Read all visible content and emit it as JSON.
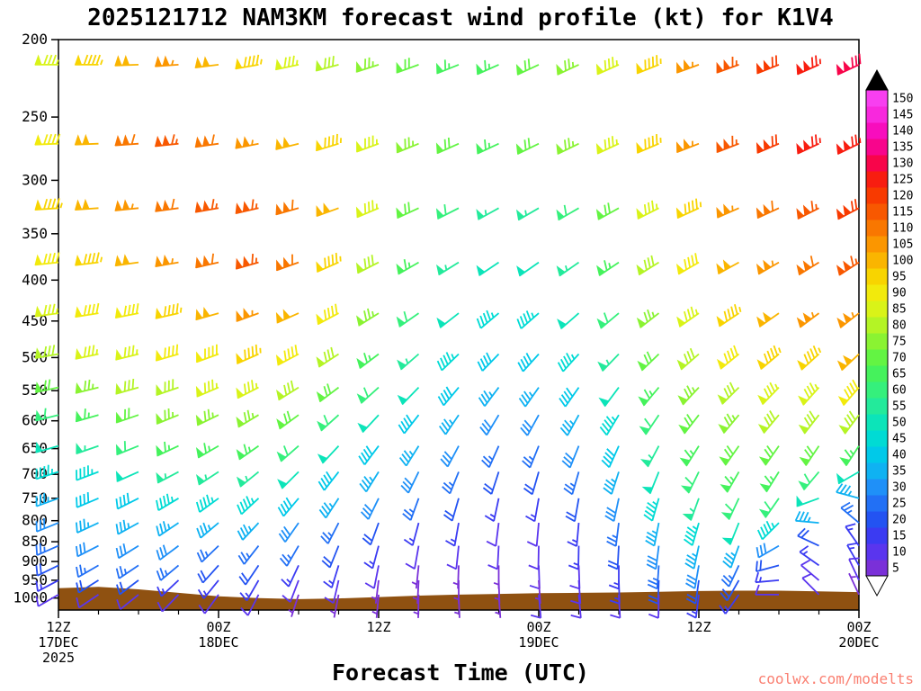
{
  "title": "2025121712 NAM3KM forecast wind profile (kt) for K1V4",
  "xlabel": "Forecast Time (UTC)",
  "watermark": "coolwx.com/modelts",
  "colors": {
    "terrain": "#8f5111",
    "watermark": "#fa8072",
    "axis": "#000000",
    "background": "#ffffff"
  },
  "y_axis": {
    "ticks": [
      200,
      250,
      300,
      350,
      400,
      450,
      500,
      550,
      600,
      650,
      700,
      750,
      800,
      850,
      900,
      950,
      1000
    ],
    "scale": "log",
    "top_hpa": 200,
    "bottom_hpa": 1035
  },
  "x_axis": {
    "total_hours": 60,
    "minor_step_hours": 3,
    "major_ticks": [
      {
        "hour": 0,
        "time": "12Z",
        "date": "17DEC",
        "year": "2025"
      },
      {
        "hour": 12,
        "time": "00Z",
        "date": "18DEC",
        "year": ""
      },
      {
        "hour": 24,
        "time": "12Z",
        "date": "",
        "year": ""
      },
      {
        "hour": 36,
        "time": "00Z",
        "date": "19DEC",
        "year": ""
      },
      {
        "hour": 48,
        "time": "12Z",
        "date": "",
        "year": ""
      },
      {
        "hour": 60,
        "time": "00Z",
        "date": "20DEC",
        "year": ""
      }
    ]
  },
  "colorbar": {
    "unit": "kt",
    "values": [
      5,
      10,
      15,
      20,
      25,
      30,
      35,
      40,
      45,
      50,
      55,
      60,
      65,
      70,
      75,
      80,
      85,
      90,
      95,
      100,
      105,
      110,
      115,
      120,
      125,
      130,
      135,
      140,
      145,
      150
    ],
    "colors": [
      "#7a30d8",
      "#5a35ee",
      "#3b3bf2",
      "#2353f2",
      "#2270f5",
      "#1f90f8",
      "#0fb2f2",
      "#00c9e9",
      "#00dbd4",
      "#0ce4b9",
      "#23ea9b",
      "#35f07c",
      "#45f25c",
      "#63f443",
      "#8af332",
      "#b4f425",
      "#d9f318",
      "#f2ea0c",
      "#f8d400",
      "#fab500",
      "#fb9600",
      "#f97700",
      "#f85800",
      "#f83a00",
      "#f81d10",
      "#f8054a",
      "#f8058c",
      "#f80dbd",
      "#f828dd",
      "#f83ff0"
    ]
  },
  "chart_data": {
    "type": "wind-barb-time-height",
    "model": "NAM3KM",
    "run": "2025121712",
    "station": "K1V4",
    "units": "kt",
    "hours": [
      0,
      3,
      6,
      9,
      12,
      15,
      18,
      21,
      24,
      27,
      30,
      33,
      36,
      39,
      42,
      45,
      48,
      51,
      54,
      57,
      60
    ],
    "levels_hpa": [
      215,
      270,
      325,
      380,
      440,
      495,
      545,
      590,
      645,
      695,
      750,
      805,
      860,
      910,
      950,
      990
    ],
    "speed_kt": [
      [
        85,
        95,
        100,
        105,
        100,
        95,
        85,
        80,
        75,
        70,
        65,
        65,
        70,
        75,
        85,
        95,
        105,
        115,
        120,
        125,
        130
      ],
      [
        90,
        100,
        110,
        115,
        110,
        105,
        100,
        95,
        85,
        75,
        70,
        65,
        70,
        75,
        85,
        95,
        105,
        115,
        120,
        125,
        125
      ],
      [
        95,
        100,
        105,
        110,
        115,
        115,
        110,
        100,
        85,
        70,
        60,
        55,
        55,
        60,
        70,
        85,
        95,
        105,
        110,
        115,
        120
      ],
      [
        90,
        95,
        100,
        105,
        110,
        115,
        110,
        95,
        80,
        65,
        55,
        50,
        50,
        55,
        65,
        80,
        90,
        100,
        105,
        110,
        115
      ],
      [
        85,
        90,
        90,
        95,
        100,
        105,
        100,
        90,
        75,
        60,
        50,
        45,
        45,
        50,
        60,
        75,
        85,
        95,
        100,
        105,
        105
      ],
      [
        80,
        85,
        85,
        90,
        90,
        95,
        90,
        80,
        65,
        55,
        45,
        40,
        40,
        45,
        55,
        70,
        80,
        90,
        95,
        95,
        100
      ],
      [
        70,
        75,
        80,
        80,
        85,
        85,
        80,
        70,
        60,
        50,
        40,
        35,
        35,
        40,
        50,
        65,
        75,
        80,
        85,
        85,
        90
      ],
      [
        60,
        65,
        70,
        75,
        75,
        75,
        70,
        60,
        50,
        40,
        35,
        30,
        30,
        35,
        45,
        60,
        70,
        75,
        80,
        80,
        80
      ],
      [
        50,
        55,
        60,
        65,
        65,
        65,
        60,
        50,
        40,
        35,
        30,
        25,
        25,
        30,
        40,
        55,
        65,
        70,
        70,
        70,
        65
      ],
      [
        45,
        45,
        50,
        55,
        55,
        55,
        50,
        40,
        35,
        30,
        25,
        20,
        20,
        25,
        35,
        50,
        60,
        65,
        65,
        60,
        50
      ],
      [
        35,
        40,
        40,
        45,
        45,
        45,
        40,
        35,
        30,
        25,
        20,
        15,
        15,
        20,
        30,
        45,
        55,
        60,
        60,
        50,
        35
      ],
      [
        30,
        35,
        35,
        35,
        35,
        35,
        30,
        25,
        20,
        15,
        15,
        10,
        10,
        15,
        25,
        35,
        45,
        50,
        45,
        35,
        25
      ],
      [
        25,
        30,
        30,
        30,
        25,
        25,
        25,
        20,
        15,
        10,
        10,
        10,
        10,
        15,
        20,
        30,
        35,
        35,
        30,
        20,
        15
      ],
      [
        20,
        25,
        25,
        25,
        20,
        20,
        15,
        15,
        10,
        5,
        5,
        5,
        10,
        10,
        15,
        25,
        30,
        25,
        20,
        15,
        15
      ],
      [
        15,
        20,
        20,
        15,
        15,
        15,
        10,
        10,
        5,
        5,
        5,
        5,
        5,
        10,
        15,
        20,
        20,
        20,
        15,
        10,
        10
      ],
      [
        10,
        10,
        10,
        10,
        10,
        10,
        5,
        5,
        5,
        5,
        5,
        5,
        10,
        10,
        10,
        10,
        15,
        15,
        10,
        10,
        5
      ]
    ],
    "dir_from_deg": [
      [
        270,
        270,
        268,
        266,
        263,
        260,
        258,
        255,
        252,
        250,
        248,
        246,
        245,
        245,
        246,
        248,
        250,
        250,
        248,
        246,
        245
      ],
      [
        268,
        268,
        266,
        264,
        262,
        259,
        256,
        253,
        250,
        248,
        246,
        245,
        244,
        244,
        245,
        247,
        249,
        249,
        247,
        245,
        244
      ],
      [
        266,
        266,
        264,
        262,
        260,
        257,
        254,
        250,
        247,
        245,
        243,
        241,
        240,
        240,
        241,
        243,
        245,
        246,
        245,
        243,
        242
      ],
      [
        264,
        263,
        262,
        260,
        257,
        254,
        250,
        246,
        243,
        240,
        238,
        236,
        235,
        235,
        236,
        238,
        240,
        241,
        240,
        238,
        237
      ],
      [
        262,
        261,
        259,
        257,
        254,
        250,
        246,
        242,
        238,
        235,
        232,
        230,
        229,
        229,
        230,
        232,
        235,
        236,
        235,
        233,
        232
      ],
      [
        260,
        258,
        256,
        254,
        250,
        246,
        242,
        237,
        233,
        229,
        226,
        224,
        222,
        222,
        224,
        226,
        229,
        231,
        230,
        228,
        227
      ],
      [
        258,
        256,
        254,
        251,
        247,
        243,
        238,
        233,
        228,
        224,
        220,
        217,
        215,
        215,
        217,
        220,
        223,
        225,
        224,
        222,
        221
      ],
      [
        256,
        254,
        251,
        248,
        244,
        239,
        234,
        228,
        223,
        218,
        214,
        211,
        209,
        209,
        211,
        214,
        218,
        220,
        220,
        218,
        217
      ],
      [
        254,
        251,
        248,
        245,
        240,
        235,
        229,
        223,
        217,
        212,
        208,
        204,
        202,
        202,
        204,
        208,
        212,
        215,
        215,
        214,
        213
      ],
      [
        252,
        249,
        246,
        242,
        237,
        231,
        225,
        218,
        212,
        206,
        202,
        198,
        196,
        196,
        198,
        202,
        206,
        210,
        212,
        220,
        240
      ],
      [
        250,
        247,
        243,
        239,
        234,
        227,
        220,
        213,
        206,
        200,
        196,
        192,
        190,
        190,
        192,
        196,
        200,
        205,
        215,
        250,
        285
      ],
      [
        248,
        245,
        241,
        236,
        230,
        223,
        215,
        207,
        200,
        195,
        190,
        187,
        185,
        185,
        187,
        191,
        196,
        202,
        225,
        275,
        310
      ],
      [
        246,
        243,
        238,
        233,
        226,
        218,
        210,
        202,
        195,
        190,
        186,
        183,
        181,
        181,
        183,
        187,
        192,
        200,
        240,
        295,
        325
      ],
      [
        244,
        240,
        236,
        230,
        222,
        214,
        205,
        197,
        191,
        186,
        182,
        180,
        178,
        178,
        180,
        184,
        190,
        205,
        255,
        305,
        330
      ],
      [
        242,
        238,
        233,
        227,
        219,
        210,
        201,
        193,
        187,
        183,
        180,
        178,
        176,
        176,
        178,
        182,
        188,
        210,
        265,
        310,
        335
      ],
      [
        240,
        236,
        231,
        224,
        216,
        207,
        198,
        191,
        185,
        181,
        178,
        176,
        175,
        175,
        177,
        181,
        187,
        215,
        270,
        315,
        335
      ]
    ],
    "terrain_top_hpa": {
      "hours": [
        0,
        3,
        6,
        9,
        12,
        15,
        18,
        21,
        24,
        27,
        30,
        33,
        36,
        39,
        42,
        45,
        48,
        51,
        54,
        57,
        60
      ],
      "pressure": [
        972,
        968,
        975,
        985,
        995,
        1000,
        1003,
        1001,
        997,
        993,
        990,
        988,
        986,
        985,
        984,
        982,
        980,
        979,
        979,
        981,
        983
      ]
    }
  }
}
